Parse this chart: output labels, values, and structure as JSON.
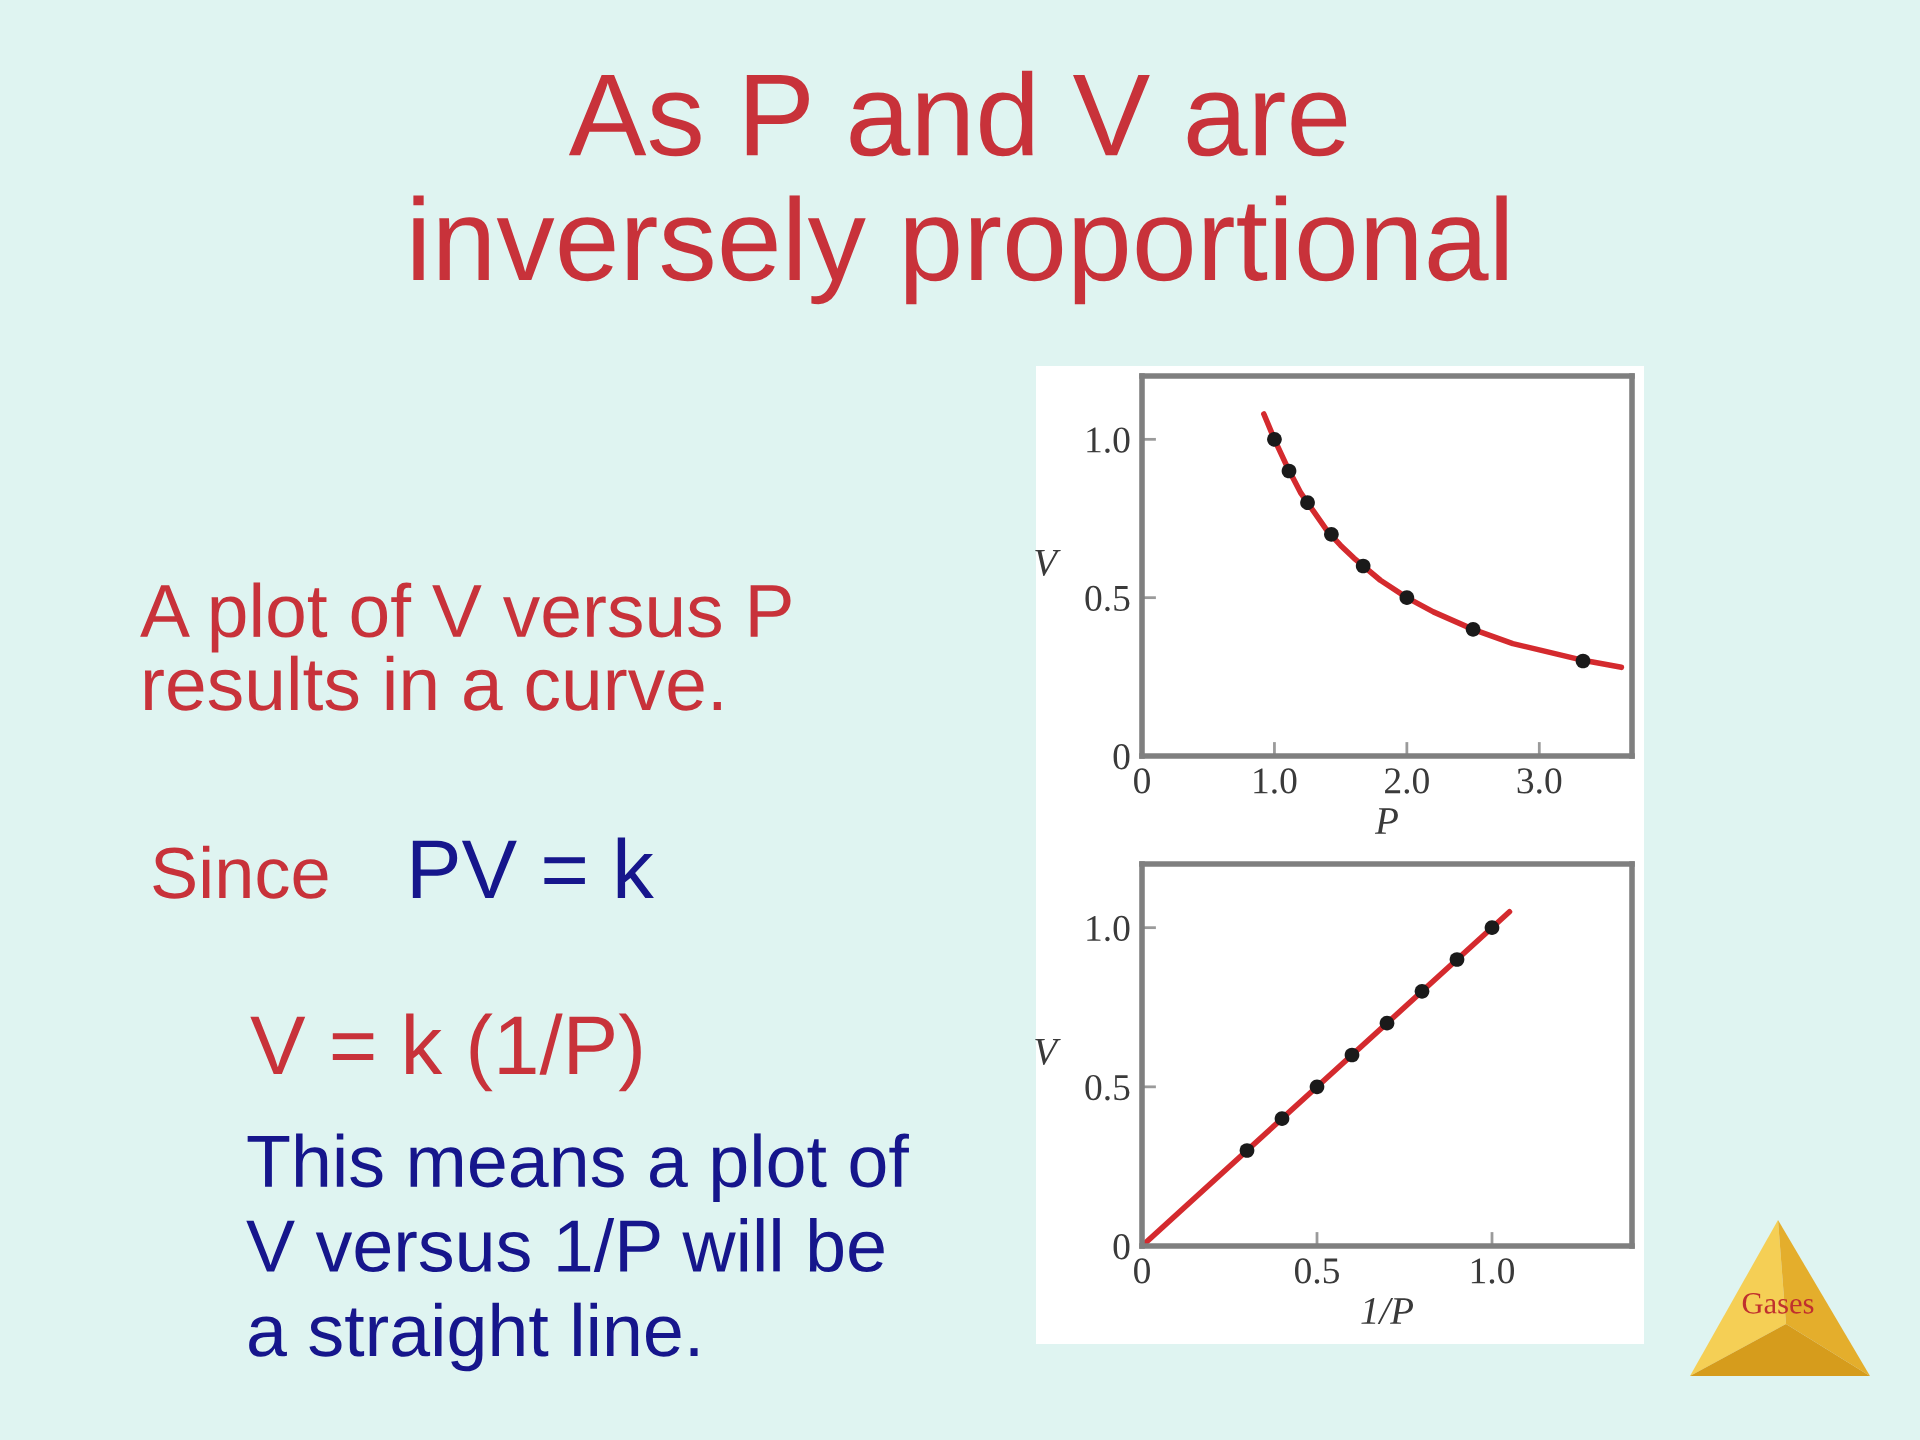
{
  "chart_data": [
    {
      "type": "scatter",
      "title": "As P and V are\ninversely proportional",
      "xlabel": "P",
      "ylabel": "V",
      "xlim": [
        0,
        3.7
      ],
      "ylim": [
        0,
        1.2
      ],
      "xticks": [
        0,
        {
          "value": 1,
          "label": "1.0"
        },
        {
          "value": 2,
          "label": "2.0"
        },
        {
          "value": 3,
          "label": "3.0"
        }
      ],
      "yticks": [
        0,
        0.5,
        {
          "value": 1,
          "label": "1.0"
        }
      ],
      "series": [
        {
          "type": "line",
          "color": "#d42a2e",
          "x": [
            0.92,
            1.0,
            1.1,
            1.2,
            1.3,
            1.4,
            1.5,
            1.6,
            1.8,
            2.0,
            2.2,
            2.5,
            2.8,
            3.0,
            3.3,
            3.62
          ],
          "values": [
            1.08,
            1.0,
            0.91,
            0.83,
            0.77,
            0.71,
            0.665,
            0.625,
            0.555,
            0.5,
            0.455,
            0.4,
            0.355,
            0.335,
            0.305,
            0.28
          ]
        },
        {
          "color": "#1a1a1a",
          "marker": "circle",
          "x": [
            1.0,
            1.11,
            1.25,
            1.43,
            1.67,
            2.0,
            2.5,
            3.33
          ],
          "values": [
            1.0,
            0.9,
            0.8,
            0.7,
            0.6,
            0.5,
            0.4,
            0.3
          ]
        }
      ],
      "annotations": [
        "A plot of V versus P\nresults in a curve.",
        "Since",
        "PV = k",
        "V = k (1/P)",
        "This means a plot of\nV versus 1/P will be\na straight line.",
        "Gases"
      ]
    },
    {
      "type": "scatter",
      "xlabel": "1/P",
      "ylabel": "V",
      "xlim": [
        0,
        1.4
      ],
      "ylim": [
        0,
        1.2
      ],
      "xticks": [
        0,
        0.5,
        {
          "value": 1,
          "label": "1.0"
        }
      ],
      "yticks": [
        0,
        0.5,
        {
          "value": 1,
          "label": "1.0"
        }
      ],
      "series": [
        {
          "type": "line",
          "color": "#d42a2e",
          "x": [
            0,
            1.05
          ],
          "values": [
            0,
            1.05
          ]
        },
        {
          "color": "#1a1a1a",
          "marker": "circle",
          "x": [
            0.3,
            0.4,
            0.5,
            0.6,
            0.7,
            0.8,
            0.9,
            1.0
          ],
          "values": [
            0.3,
            0.4,
            0.5,
            0.6,
            0.7,
            0.8,
            0.9,
            1.0
          ]
        }
      ]
    }
  ]
}
